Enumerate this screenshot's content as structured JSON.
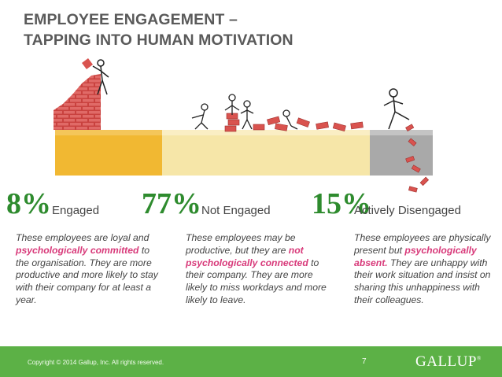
{
  "title": {
    "line1": "EMPLOYEE ENGAGEMENT –",
    "line2": "TAPPING INTO HUMAN MOTIVATION"
  },
  "segments": [
    {
      "percent_text": "8%",
      "label": "Engaged",
      "bar_color": "#f1b832",
      "desc": [
        {
          "text": "These employees are loyal and ",
          "hl": false
        },
        {
          "text": "psychologically committed",
          "hl": true
        },
        {
          "text": " to the organisation. They are more productive and more likely to stay with their company for at least a year.",
          "hl": false
        }
      ]
    },
    {
      "percent_text": "77%",
      "label": "Not Engaged",
      "bar_color": "#f6e6a8",
      "desc": [
        {
          "text": "These employees may be productive, but they are ",
          "hl": false
        },
        {
          "text": "not psychologically connected",
          "hl": true
        },
        {
          "text": " to their company. They are more likely to miss workdays and more likely to leave.",
          "hl": false
        }
      ]
    },
    {
      "percent_text": "15%",
      "label": "Actively Disengaged",
      "bar_color": "#a9a9a9",
      "desc": [
        {
          "text": "These employees are physically present but ",
          "hl": false
        },
        {
          "text": "psychologically absent.",
          "hl": true
        },
        {
          "text": " They are unhappy with their work situation and insist on sharing this unhappiness with their colleagues.",
          "hl": false
        }
      ]
    }
  ],
  "colors": {
    "percent_green": "#2e8b2e",
    "highlight": "#d83a7a",
    "footer": "#5cb146",
    "brick": "#d9534f"
  },
  "footer": {
    "copyright": "Copyright © 2014 Gallup, Inc. All rights reserved.",
    "page": "7",
    "logo": "GALLUP"
  }
}
